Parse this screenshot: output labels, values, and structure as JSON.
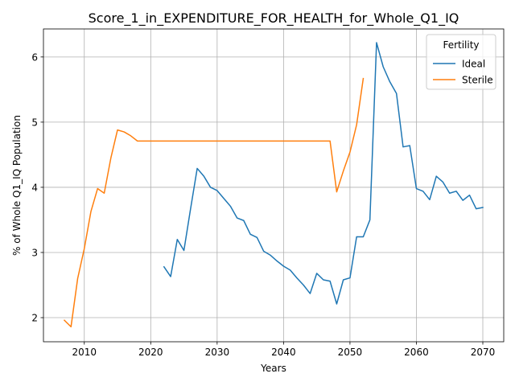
{
  "chart_data": {
    "type": "line",
    "title": "Score_1_in_EXPENDITURE_FOR_HEALTH_for_Whole_Q1_IQ",
    "xlabel": "Years",
    "ylabel": "% of Whole Q1_IQ Population",
    "xlim": [
      2003.85,
      2073.15
    ],
    "ylim": [
      1.63,
      6.43
    ],
    "xticks": [
      2010,
      2020,
      2030,
      2040,
      2050,
      2060,
      2070
    ],
    "yticks": [
      2,
      3,
      4,
      5,
      6
    ],
    "grid": true,
    "legend": {
      "title": "Fertility",
      "position": "top-right"
    },
    "series": [
      {
        "name": "Ideal",
        "color": "#1f77b4",
        "x": [
          2022,
          2023,
          2024,
          2025,
          2026,
          2027,
          2028,
          2029,
          2030,
          2031,
          2032,
          2033,
          2034,
          2035,
          2036,
          2037,
          2038,
          2039,
          2040,
          2041,
          2042,
          2043,
          2044,
          2045,
          2046,
          2047,
          2048,
          2049,
          2050,
          2051,
          2052,
          2053,
          2054,
          2055,
          2056,
          2057,
          2058,
          2059,
          2060,
          2061,
          2062,
          2063,
          2064,
          2065,
          2066,
          2067,
          2068,
          2069,
          2070
        ],
        "values": [
          2.78,
          2.63,
          3.2,
          3.03,
          3.67,
          4.29,
          4.17,
          4.0,
          3.95,
          3.83,
          3.71,
          3.53,
          3.49,
          3.28,
          3.23,
          3.02,
          2.96,
          2.87,
          2.79,
          2.73,
          2.61,
          2.5,
          2.37,
          2.68,
          2.58,
          2.56,
          2.21,
          2.58,
          2.61,
          3.24,
          3.24,
          3.5,
          6.22,
          5.85,
          5.62,
          5.44,
          4.62,
          4.64,
          3.98,
          3.94,
          3.81,
          4.17,
          4.08,
          3.91,
          3.94,
          3.8,
          3.88,
          3.67,
          3.69
        ]
      },
      {
        "name": "Sterile",
        "color": "#ff7f0e",
        "x": [
          2007,
          2008,
          2009,
          2010,
          2011,
          2012,
          2013,
          2014,
          2015,
          2016,
          2017,
          2018,
          2019,
          2020,
          2021,
          2022,
          2023,
          2024,
          2025,
          2026,
          2027,
          2028,
          2029,
          2030,
          2031,
          2032,
          2033,
          2034,
          2035,
          2036,
          2037,
          2038,
          2039,
          2040,
          2041,
          2042,
          2043,
          2044,
          2045,
          2046,
          2047,
          2048,
          2049,
          2050,
          2051,
          2052
        ],
        "values": [
          1.96,
          1.86,
          2.6,
          3.06,
          3.63,
          3.98,
          3.91,
          4.45,
          4.88,
          4.85,
          4.79,
          4.71,
          4.71,
          4.71,
          4.71,
          4.71,
          4.71,
          4.71,
          4.71,
          4.71,
          4.71,
          4.71,
          4.71,
          4.71,
          4.71,
          4.71,
          4.71,
          4.71,
          4.71,
          4.71,
          4.71,
          4.71,
          4.71,
          4.71,
          4.71,
          4.71,
          4.71,
          4.71,
          4.71,
          4.71,
          4.71,
          3.93,
          4.25,
          4.54,
          4.96,
          5.67
        ]
      }
    ]
  }
}
